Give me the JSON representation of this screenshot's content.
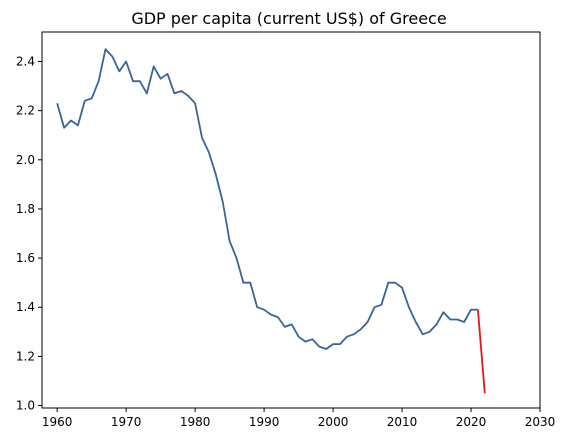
{
  "chart_data": {
    "type": "line",
    "title": "GDP per capita (current US$) of Greece",
    "xlabel": "",
    "ylabel": "",
    "xlim": [
      1957.8,
      2030
    ],
    "ylim": [
      0.99,
      2.52
    ],
    "x_ticks": [
      1960,
      1970,
      1980,
      1990,
      2000,
      2010,
      2020,
      2030
    ],
    "y_ticks": [
      1.0,
      1.2,
      1.4,
      1.6,
      1.8,
      2.0,
      2.2,
      2.4
    ],
    "grid": false,
    "legend": "none",
    "series": [
      {
        "color": "#3b6496",
        "x": [
          1960,
          1961,
          1962,
          1963,
          1964,
          1965,
          1966,
          1967,
          1968,
          1969,
          1970,
          1971,
          1972,
          1973,
          1974,
          1975,
          1976,
          1977,
          1978,
          1979,
          1980,
          1981,
          1982,
          1983,
          1984,
          1985,
          1986,
          1987,
          1988,
          1989,
          1990,
          1991,
          1992,
          1993,
          1994,
          1995,
          1996,
          1997,
          1998,
          1999,
          2000,
          2001,
          2002,
          2003,
          2004,
          2005,
          2006,
          2007,
          2008,
          2009,
          2010,
          2011,
          2012,
          2013,
          2014,
          2015,
          2016,
          2017,
          2018,
          2019,
          2020,
          2021
        ],
        "values": [
          2.23,
          2.13,
          2.16,
          2.14,
          2.24,
          2.25,
          2.32,
          2.45,
          2.42,
          2.36,
          2.4,
          2.32,
          2.32,
          2.27,
          2.38,
          2.33,
          2.35,
          2.27,
          2.28,
          2.26,
          2.23,
          2.09,
          2.03,
          1.94,
          1.83,
          1.67,
          1.6,
          1.5,
          1.5,
          1.4,
          1.39,
          1.37,
          1.36,
          1.32,
          1.33,
          1.28,
          1.26,
          1.27,
          1.24,
          1.23,
          1.25,
          1.25,
          1.28,
          1.29,
          1.31,
          1.34,
          1.4,
          1.41,
          1.5,
          1.5,
          1.48,
          1.4,
          1.34,
          1.29,
          1.3,
          1.33,
          1.38,
          1.35,
          1.35,
          1.34,
          1.39,
          1.39
        ]
      },
      {
        "color": "#e8121a",
        "x": [
          2021,
          2022
        ],
        "values": [
          1.39,
          1.05
        ]
      }
    ]
  }
}
